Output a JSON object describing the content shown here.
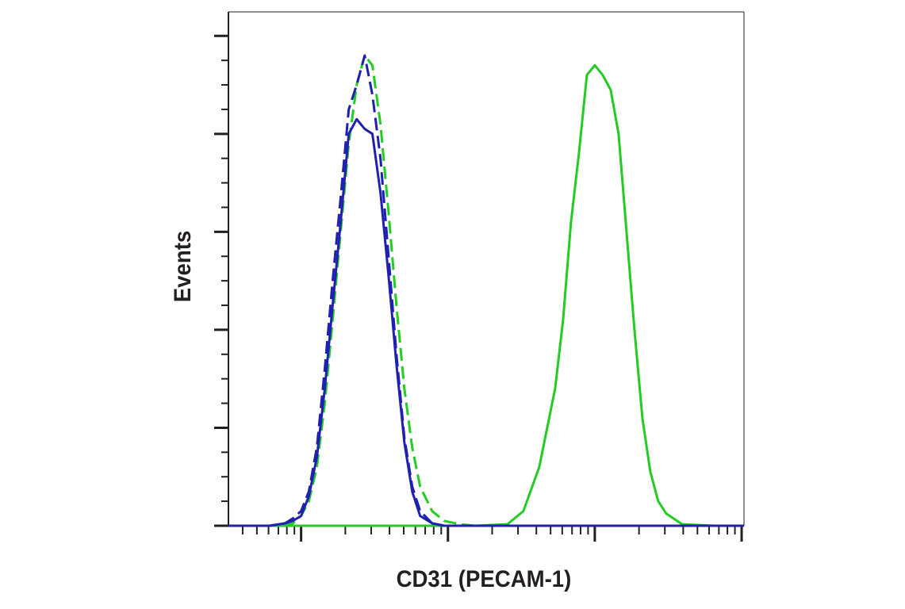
{
  "chart_data": {
    "type": "line",
    "x_label": "CD31 (PECAM-1)",
    "y_label": "Events",
    "xscale": "log",
    "xlim": [
      32,
      103750
    ],
    "xticks": [
      100,
      1000,
      10000,
      100000
    ],
    "ylim": [
      0,
      104.9
    ],
    "yticks": [
      0,
      20,
      40,
      60,
      80,
      100
    ],
    "series": [
      {
        "color": "#22cc22",
        "dash": false,
        "x": [
          32,
          61,
          78,
          88,
          100,
          113,
          128,
          145,
          164,
          186,
          211,
          239,
          271,
          306,
          347,
          394,
          446,
          505,
          571,
          647,
          780,
          940,
          1205,
          1545,
          2541,
          3266,
          4188,
          5370,
          6081,
          6886,
          7798,
          8831,
          10000,
          11324,
          12824,
          14521,
          16444,
          18621,
          21087,
          23879,
          27040,
          30621,
          39350,
          64710,
          103750
        ],
        "values": [
          0,
          0,
          0,
          0,
          0,
          0,
          0,
          0,
          0,
          0,
          0,
          0,
          0,
          0,
          0,
          0,
          0,
          0,
          0,
          0,
          0,
          0,
          0,
          0,
          0.3,
          3,
          12,
          28,
          42,
          62,
          76,
          92,
          94,
          92,
          89,
          80,
          60,
          40,
          22,
          11,
          5,
          2.5,
          0.3,
          0,
          0
        ]
      },
      {
        "color": "#22cc22",
        "dash": true,
        "x": [
          32,
          61,
          78,
          88,
          100,
          113,
          128,
          145,
          164,
          186,
          211,
          239,
          271,
          306,
          347,
          394,
          446,
          505,
          571,
          647,
          780,
          940,
          1205,
          1545
        ],
        "values": [
          0,
          0,
          0,
          0.5,
          2,
          5,
          12,
          25,
          42,
          60,
          78,
          90,
          96,
          94,
          82,
          64,
          45,
          28,
          16,
          8,
          3,
          1,
          0.3,
          0
        ]
      },
      {
        "color": "#2020b0",
        "dash": true,
        "x": [
          32,
          61,
          78,
          88,
          100,
          113,
          128,
          145,
          164,
          186,
          211,
          239,
          271,
          306,
          347,
          394,
          446,
          505,
          571,
          647,
          780,
          940
        ],
        "values": [
          0,
          0,
          0.5,
          1.5,
          3,
          7,
          16,
          32,
          50,
          67,
          85,
          90,
          96,
          88,
          75,
          55,
          35,
          18,
          8,
          3,
          0.5,
          0
        ]
      },
      {
        "color": "#2020b0",
        "dash": false,
        "x": [
          32,
          61,
          78,
          88,
          100,
          113,
          128,
          145,
          164,
          186,
          211,
          239,
          271,
          306,
          347,
          394,
          446,
          505,
          571,
          647,
          780,
          940,
          1205,
          1545,
          2541,
          5370,
          10000,
          39350,
          103750
        ],
        "values": [
          0,
          0,
          0.5,
          1,
          2,
          6,
          14,
          28,
          45,
          62,
          80,
          83,
          81,
          80,
          68,
          51,
          33,
          17,
          7,
          2,
          0.5,
          0,
          0,
          0,
          0,
          0,
          0,
          0,
          0
        ]
      }
    ]
  }
}
